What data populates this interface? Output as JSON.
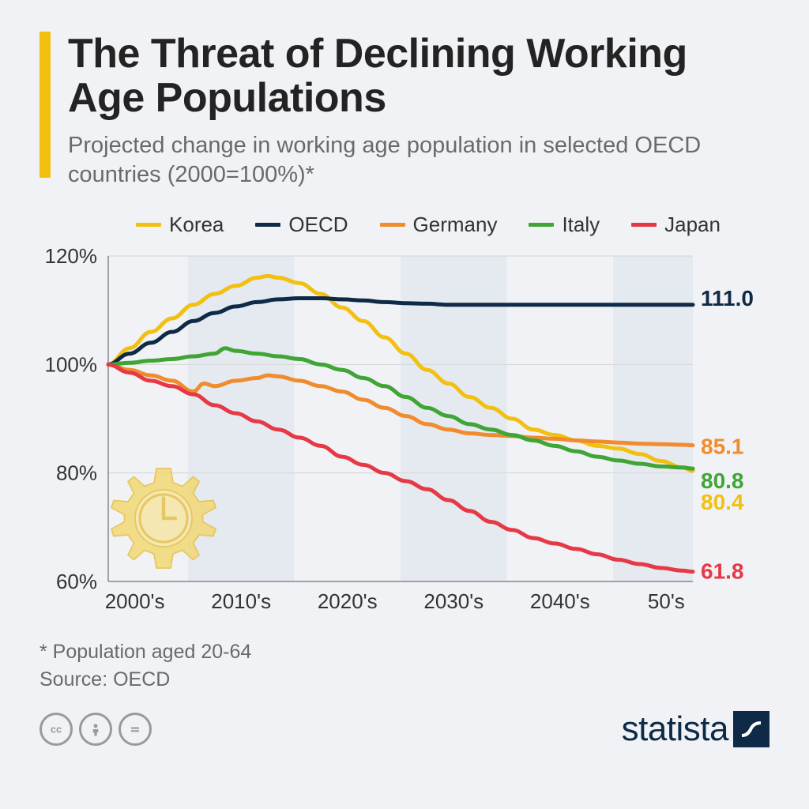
{
  "header": {
    "title": "The Threat of Declining Working Age Populations",
    "subtitle": "Projected change in working age population in selected OECD countries (2000=100%)*",
    "accent_color": "#f2c011"
  },
  "chart": {
    "type": "line",
    "background_color": "#f0f2f5",
    "band_color": "#dde3ec",
    "gridline_color": "#d5d5d5",
    "axis_color": "#888888",
    "ylim": [
      60,
      120
    ],
    "yticks": [
      60,
      80,
      100,
      120
    ],
    "ytick_labels": [
      "60%",
      "80%",
      "100%",
      "120%"
    ],
    "x_categories": [
      "2000's",
      "2010's",
      "2020's",
      "2030's",
      "2040's",
      "50's"
    ],
    "x_decade_starts": [
      0,
      10,
      20,
      30,
      40,
      50
    ],
    "x_range": [
      0,
      55
    ],
    "line_width": 5,
    "series": [
      {
        "name": "Korea",
        "color": "#f2c011",
        "end_value": 80.4,
        "end_label": "80.4",
        "points": [
          [
            0,
            100
          ],
          [
            2,
            103
          ],
          [
            4,
            106
          ],
          [
            6,
            108.5
          ],
          [
            8,
            111
          ],
          [
            10,
            113
          ],
          [
            12,
            114.5
          ],
          [
            14,
            116
          ],
          [
            15,
            116.3
          ],
          [
            16,
            116
          ],
          [
            18,
            115
          ],
          [
            20,
            113
          ],
          [
            22,
            110.5
          ],
          [
            24,
            108
          ],
          [
            26,
            105
          ],
          [
            28,
            102
          ],
          [
            30,
            99
          ],
          [
            32,
            96.5
          ],
          [
            34,
            94
          ],
          [
            36,
            92
          ],
          [
            38,
            90
          ],
          [
            40,
            88
          ],
          [
            42,
            87
          ],
          [
            44,
            86
          ],
          [
            46,
            85
          ],
          [
            48,
            84.5
          ],
          [
            50,
            83.5
          ],
          [
            52,
            82.2
          ],
          [
            54,
            81
          ],
          [
            55,
            80.4
          ]
        ]
      },
      {
        "name": "OECD",
        "color": "#0e2a47",
        "end_value": 111.0,
        "end_label": "111.0",
        "points": [
          [
            0,
            100
          ],
          [
            2,
            102
          ],
          [
            4,
            104
          ],
          [
            6,
            106
          ],
          [
            8,
            108
          ],
          [
            10,
            109.5
          ],
          [
            12,
            110.7
          ],
          [
            14,
            111.5
          ],
          [
            16,
            112
          ],
          [
            18,
            112.2
          ],
          [
            20,
            112.2
          ],
          [
            22,
            112
          ],
          [
            24,
            111.8
          ],
          [
            26,
            111.5
          ],
          [
            28,
            111.3
          ],
          [
            30,
            111.2
          ],
          [
            32,
            111
          ],
          [
            34,
            111
          ],
          [
            36,
            111
          ],
          [
            38,
            111
          ],
          [
            40,
            111
          ],
          [
            42,
            111
          ],
          [
            44,
            111
          ],
          [
            46,
            111
          ],
          [
            48,
            111
          ],
          [
            50,
            111
          ],
          [
            52,
            111
          ],
          [
            54,
            111
          ],
          [
            55,
            111
          ]
        ]
      },
      {
        "name": "Germany",
        "color": "#f08c2e",
        "end_value": 85.1,
        "end_label": "85.1",
        "points": [
          [
            0,
            100
          ],
          [
            2,
            99
          ],
          [
            4,
            98
          ],
          [
            6,
            97
          ],
          [
            8,
            95
          ],
          [
            9,
            96.5
          ],
          [
            10,
            96
          ],
          [
            12,
            97
          ],
          [
            14,
            97.5
          ],
          [
            15,
            98
          ],
          [
            16,
            97.8
          ],
          [
            18,
            97
          ],
          [
            20,
            96
          ],
          [
            22,
            95
          ],
          [
            24,
            93.5
          ],
          [
            26,
            92
          ],
          [
            28,
            90.5
          ],
          [
            30,
            89
          ],
          [
            32,
            88
          ],
          [
            34,
            87.3
          ],
          [
            36,
            87
          ],
          [
            38,
            86.8
          ],
          [
            40,
            86.5
          ],
          [
            42,
            86.3
          ],
          [
            44,
            86
          ],
          [
            46,
            85.8
          ],
          [
            48,
            85.6
          ],
          [
            50,
            85.4
          ],
          [
            52,
            85.3
          ],
          [
            54,
            85.2
          ],
          [
            55,
            85.1
          ]
        ]
      },
      {
        "name": "Italy",
        "color": "#3fa535",
        "end_value": 80.8,
        "end_label": "80.8",
        "points": [
          [
            0,
            100
          ],
          [
            2,
            100.3
          ],
          [
            4,
            100.7
          ],
          [
            6,
            101
          ],
          [
            8,
            101.5
          ],
          [
            10,
            102
          ],
          [
            11,
            103
          ],
          [
            12,
            102.5
          ],
          [
            14,
            102
          ],
          [
            16,
            101.5
          ],
          [
            18,
            101
          ],
          [
            20,
            100
          ],
          [
            22,
            99
          ],
          [
            24,
            97.5
          ],
          [
            26,
            96
          ],
          [
            28,
            94
          ],
          [
            30,
            92
          ],
          [
            32,
            90.5
          ],
          [
            34,
            89
          ],
          [
            36,
            88
          ],
          [
            38,
            87
          ],
          [
            40,
            86
          ],
          [
            42,
            85
          ],
          [
            44,
            84
          ],
          [
            46,
            83
          ],
          [
            48,
            82.3
          ],
          [
            50,
            81.7
          ],
          [
            52,
            81.2
          ],
          [
            54,
            81
          ],
          [
            55,
            80.8
          ]
        ]
      },
      {
        "name": "Japan",
        "color": "#e63946",
        "end_value": 61.8,
        "end_label": "61.8",
        "points": [
          [
            0,
            100
          ],
          [
            2,
            98.5
          ],
          [
            4,
            97
          ],
          [
            6,
            96
          ],
          [
            8,
            94.5
          ],
          [
            10,
            92.5
          ],
          [
            12,
            91
          ],
          [
            14,
            89.5
          ],
          [
            16,
            88
          ],
          [
            18,
            86.5
          ],
          [
            20,
            85
          ],
          [
            22,
            83
          ],
          [
            24,
            81.5
          ],
          [
            26,
            80
          ],
          [
            28,
            78.5
          ],
          [
            30,
            77
          ],
          [
            32,
            75
          ],
          [
            34,
            73
          ],
          [
            36,
            71
          ],
          [
            38,
            69.5
          ],
          [
            40,
            68
          ],
          [
            42,
            67
          ],
          [
            44,
            66
          ],
          [
            46,
            65
          ],
          [
            48,
            64
          ],
          [
            50,
            63.2
          ],
          [
            52,
            62.5
          ],
          [
            54,
            62
          ],
          [
            55,
            61.8
          ]
        ]
      }
    ],
    "end_label_offsets": {
      "OECD": -8,
      "Germany": 2,
      "Italy": 16,
      "Korea": 40,
      "Japan": 0
    }
  },
  "footnotes": {
    "note": "* Population aged 20-64",
    "source": "Source: OECD"
  },
  "footer": {
    "cc_icons": [
      "cc",
      "by",
      "nd"
    ],
    "brand": "statista",
    "brand_color": "#0e2a47"
  },
  "decor": {
    "gear_color": "#f2d97a",
    "gear_stroke": "#e6c24d"
  }
}
